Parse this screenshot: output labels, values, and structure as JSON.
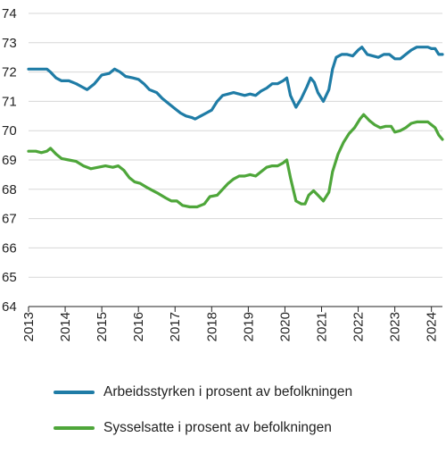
{
  "chart_data": {
    "type": "line",
    "title": "",
    "xlabel": "",
    "ylabel": "",
    "ylim": [
      64,
      74
    ],
    "xlim": [
      2013,
      2024.3
    ],
    "yticks": [
      64,
      65,
      66,
      67,
      68,
      69,
      70,
      71,
      72,
      73,
      74
    ],
    "xticks": [
      "2013",
      "2014",
      "2015",
      "2016",
      "2017",
      "2018",
      "2019",
      "2020",
      "2021",
      "2022",
      "2023",
      "2024"
    ],
    "grid": "horizontal",
    "legend_position": "bottom",
    "series": [
      {
        "name": "Arbeidsstyrken i prosent av befolkningen",
        "color": "#1f7ca6",
        "points": [
          [
            2013.0,
            72.1
          ],
          [
            2013.25,
            72.1
          ],
          [
            2013.5,
            72.1
          ],
          [
            2013.6,
            72.0
          ],
          [
            2013.75,
            71.8
          ],
          [
            2013.9,
            71.7
          ],
          [
            2014.1,
            71.7
          ],
          [
            2014.3,
            71.6
          ],
          [
            2014.45,
            71.5
          ],
          [
            2014.6,
            71.4
          ],
          [
            2014.8,
            71.6
          ],
          [
            2015.0,
            71.9
          ],
          [
            2015.2,
            71.95
          ],
          [
            2015.35,
            72.1
          ],
          [
            2015.5,
            72.0
          ],
          [
            2015.65,
            71.85
          ],
          [
            2015.85,
            71.8
          ],
          [
            2016.0,
            71.75
          ],
          [
            2016.15,
            71.6
          ],
          [
            2016.3,
            71.4
          ],
          [
            2016.5,
            71.3
          ],
          [
            2016.65,
            71.1
          ],
          [
            2016.85,
            70.9
          ],
          [
            2017.0,
            70.75
          ],
          [
            2017.15,
            70.6
          ],
          [
            2017.3,
            70.5
          ],
          [
            2017.45,
            70.45
          ],
          [
            2017.55,
            70.4
          ],
          [
            2017.7,
            70.5
          ],
          [
            2017.85,
            70.6
          ],
          [
            2018.0,
            70.7
          ],
          [
            2018.15,
            71.0
          ],
          [
            2018.3,
            71.2
          ],
          [
            2018.45,
            71.25
          ],
          [
            2018.6,
            71.3
          ],
          [
            2018.75,
            71.25
          ],
          [
            2018.9,
            71.2
          ],
          [
            2019.05,
            71.25
          ],
          [
            2019.2,
            71.2
          ],
          [
            2019.35,
            71.35
          ],
          [
            2019.5,
            71.45
          ],
          [
            2019.65,
            71.6
          ],
          [
            2019.8,
            71.6
          ],
          [
            2019.95,
            71.7
          ],
          [
            2020.05,
            71.8
          ],
          [
            2020.15,
            71.2
          ],
          [
            2020.3,
            70.8
          ],
          [
            2020.45,
            71.1
          ],
          [
            2020.6,
            71.5
          ],
          [
            2020.7,
            71.8
          ],
          [
            2020.8,
            71.65
          ],
          [
            2020.9,
            71.3
          ],
          [
            2021.05,
            71.0
          ],
          [
            2021.2,
            71.4
          ],
          [
            2021.3,
            72.1
          ],
          [
            2021.4,
            72.5
          ],
          [
            2021.55,
            72.6
          ],
          [
            2021.7,
            72.6
          ],
          [
            2021.85,
            72.55
          ],
          [
            2022.0,
            72.75
          ],
          [
            2022.1,
            72.85
          ],
          [
            2022.25,
            72.6
          ],
          [
            2022.4,
            72.55
          ],
          [
            2022.55,
            72.5
          ],
          [
            2022.7,
            72.6
          ],
          [
            2022.85,
            72.6
          ],
          [
            2023.0,
            72.45
          ],
          [
            2023.15,
            72.45
          ],
          [
            2023.3,
            72.6
          ],
          [
            2023.45,
            72.75
          ],
          [
            2023.6,
            72.85
          ],
          [
            2023.75,
            72.85
          ],
          [
            2023.9,
            72.85
          ],
          [
            2024.0,
            72.8
          ],
          [
            2024.1,
            72.8
          ],
          [
            2024.2,
            72.6
          ],
          [
            2024.3,
            72.6
          ]
        ]
      },
      {
        "name": "Sysselsatte i prosent av befolkningen",
        "color": "#4ea63a",
        "points": [
          [
            2013.0,
            69.3
          ],
          [
            2013.2,
            69.3
          ],
          [
            2013.35,
            69.25
          ],
          [
            2013.5,
            69.3
          ],
          [
            2013.6,
            69.4
          ],
          [
            2013.75,
            69.2
          ],
          [
            2013.9,
            69.05
          ],
          [
            2014.1,
            69.0
          ],
          [
            2014.3,
            68.95
          ],
          [
            2014.5,
            68.8
          ],
          [
            2014.7,
            68.7
          ],
          [
            2014.9,
            68.75
          ],
          [
            2015.1,
            68.8
          ],
          [
            2015.3,
            68.75
          ],
          [
            2015.45,
            68.8
          ],
          [
            2015.6,
            68.65
          ],
          [
            2015.75,
            68.4
          ],
          [
            2015.9,
            68.25
          ],
          [
            2016.05,
            68.2
          ],
          [
            2016.25,
            68.05
          ],
          [
            2016.4,
            67.95
          ],
          [
            2016.55,
            67.85
          ],
          [
            2016.75,
            67.7
          ],
          [
            2016.9,
            67.6
          ],
          [
            2017.05,
            67.6
          ],
          [
            2017.2,
            67.45
          ],
          [
            2017.4,
            67.4
          ],
          [
            2017.6,
            67.4
          ],
          [
            2017.8,
            67.5
          ],
          [
            2017.95,
            67.75
          ],
          [
            2018.15,
            67.8
          ],
          [
            2018.3,
            68.0
          ],
          [
            2018.45,
            68.2
          ],
          [
            2018.6,
            68.35
          ],
          [
            2018.75,
            68.45
          ],
          [
            2018.9,
            68.45
          ],
          [
            2019.05,
            68.5
          ],
          [
            2019.2,
            68.45
          ],
          [
            2019.35,
            68.6
          ],
          [
            2019.5,
            68.75
          ],
          [
            2019.65,
            68.8
          ],
          [
            2019.8,
            68.8
          ],
          [
            2019.95,
            68.9
          ],
          [
            2020.05,
            69.0
          ],
          [
            2020.15,
            68.4
          ],
          [
            2020.3,
            67.6
          ],
          [
            2020.45,
            67.5
          ],
          [
            2020.55,
            67.5
          ],
          [
            2020.65,
            67.8
          ],
          [
            2020.78,
            67.95
          ],
          [
            2020.9,
            67.8
          ],
          [
            2021.05,
            67.6
          ],
          [
            2021.2,
            67.9
          ],
          [
            2021.3,
            68.6
          ],
          [
            2021.45,
            69.2
          ],
          [
            2021.6,
            69.6
          ],
          [
            2021.75,
            69.9
          ],
          [
            2021.9,
            70.1
          ],
          [
            2022.05,
            70.4
          ],
          [
            2022.15,
            70.55
          ],
          [
            2022.3,
            70.35
          ],
          [
            2022.45,
            70.2
          ],
          [
            2022.6,
            70.1
          ],
          [
            2022.75,
            70.15
          ],
          [
            2022.9,
            70.15
          ],
          [
            2023.0,
            69.95
          ],
          [
            2023.15,
            70.0
          ],
          [
            2023.3,
            70.1
          ],
          [
            2023.45,
            70.25
          ],
          [
            2023.6,
            70.3
          ],
          [
            2023.75,
            70.3
          ],
          [
            2023.9,
            70.3
          ],
          [
            2024.0,
            70.2
          ],
          [
            2024.1,
            70.1
          ],
          [
            2024.2,
            69.85
          ],
          [
            2024.3,
            69.7
          ]
        ]
      }
    ]
  }
}
